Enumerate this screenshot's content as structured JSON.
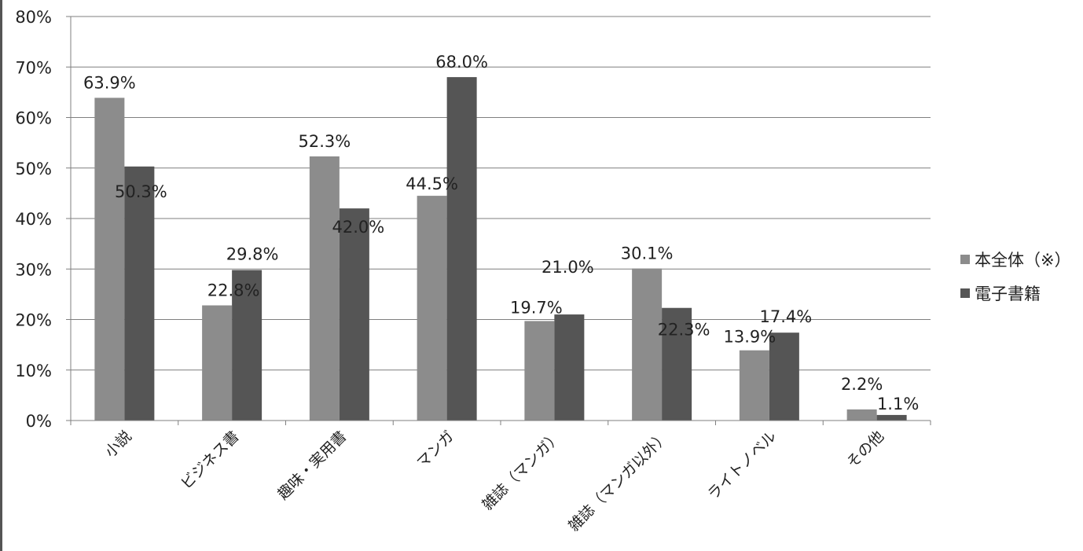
{
  "chart_data": {
    "type": "bar",
    "categories": [
      "小説",
      "ビジネス書",
      "趣味・実用書",
      "マンガ",
      "雑誌（マンガ）",
      "雑誌（マンガ以外）",
      "ライトノベル",
      "その他"
    ],
    "series": [
      {
        "name": "本全体（※）",
        "values": [
          63.9,
          22.8,
          52.3,
          44.5,
          19.7,
          30.1,
          13.9,
          2.2
        ],
        "color": "#8c8c8c"
      },
      {
        "name": "電子書籍",
        "values": [
          50.3,
          29.8,
          42.0,
          68.0,
          21.0,
          22.3,
          17.4,
          1.1
        ],
        "color": "#555555"
      }
    ],
    "value_labels": [
      [
        "63.9%",
        "22.8%",
        "52.3%",
        "44.5%",
        "19.7%",
        "30.1%",
        "13.9%",
        "2.2%"
      ],
      [
        "50.3%",
        "29.8%",
        "42.0%",
        "68.0%",
        "21.0%",
        "22.3%",
        "17.4%",
        "1.1%"
      ]
    ],
    "y_ticks": [
      "0%",
      "10%",
      "20%",
      "30%",
      "40%",
      "50%",
      "60%",
      "70%",
      "80%"
    ],
    "ylim": [
      0,
      80
    ],
    "grid": true,
    "legend_position": "right"
  }
}
